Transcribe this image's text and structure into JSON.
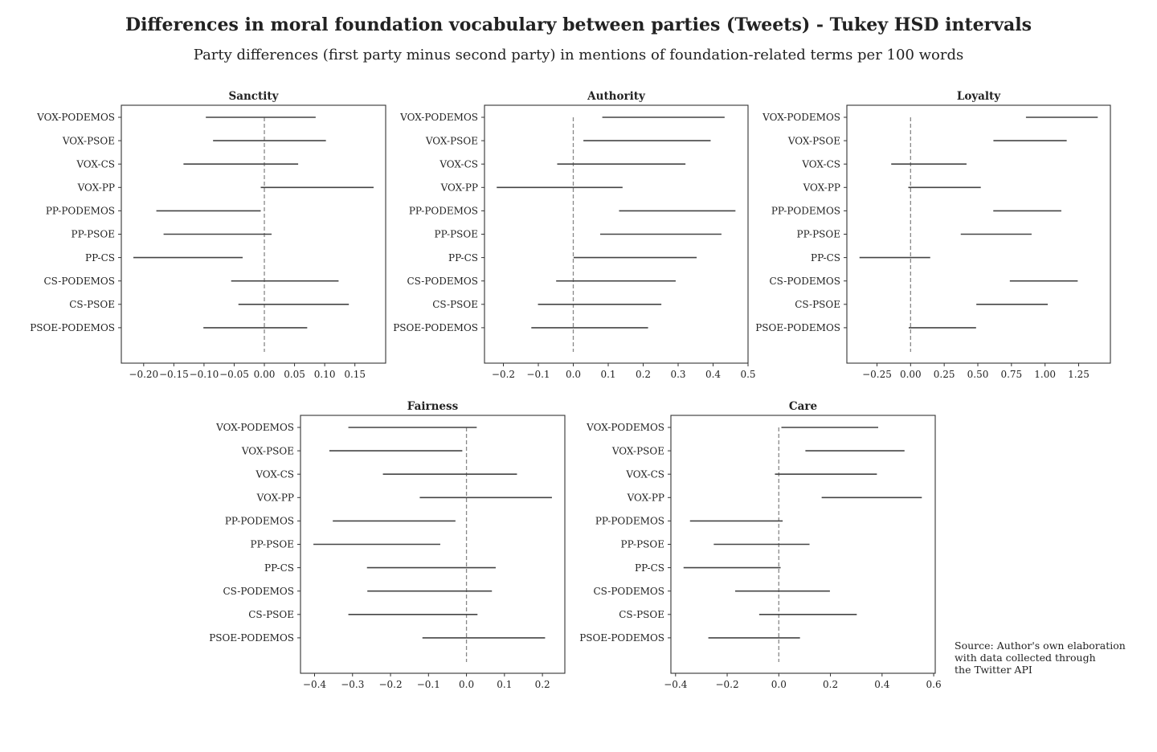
{
  "title": "Differences in moral foundation vocabulary between parties (Tweets) - Tukey HSD intervals",
  "subtitle": "Party differences (first party minus second party) in mentions of foundation-related terms per 100 words",
  "source_note": "Source: Author's own elaboration\nwith data collected through\nthe Twitter API",
  "colors": {
    "interval": "#444444",
    "zero_line": "#888888",
    "axes": "#333333"
  },
  "chart_data": [
    {
      "type": "interval",
      "title": "Sanctity",
      "categories": [
        "VOX-PODEMOS",
        "VOX-PSOE",
        "VOX-CS",
        "VOX-PP",
        "PP-PODEMOS",
        "PP-PSOE",
        "PP-CS",
        "CS-PODEMOS",
        "CS-PSOE",
        "PSOE-PODEMOS"
      ],
      "intervals": [
        [
          -0.097,
          0.085
        ],
        [
          -0.085,
          0.102
        ],
        [
          -0.134,
          0.056
        ],
        [
          -0.006,
          0.181
        ],
        [
          -0.179,
          -0.006
        ],
        [
          -0.167,
          0.012
        ],
        [
          -0.217,
          -0.036
        ],
        [
          -0.055,
          0.123
        ],
        [
          -0.043,
          0.14
        ],
        [
          -0.101,
          0.071
        ]
      ],
      "xlim": [
        -0.237,
        0.201
      ],
      "xticks": [
        -0.2,
        -0.15,
        -0.1,
        -0.05,
        0.0,
        0.05,
        0.1,
        0.15
      ],
      "xtick_labels": [
        "−0.20",
        "−0.15",
        "−0.10",
        "−0.05",
        "0.00",
        "0.05",
        "0.10",
        "0.15"
      ]
    },
    {
      "type": "interval",
      "title": "Authority",
      "categories": [
        "VOX-PODEMOS",
        "VOX-PSOE",
        "VOX-CS",
        "VOX-PP",
        "PP-PODEMOS",
        "PP-PSOE",
        "PP-CS",
        "CS-PODEMOS",
        "CS-PSOE",
        "PSOE-PODEMOS"
      ],
      "intervals": [
        [
          0.083,
          0.433
        ],
        [
          0.029,
          0.393
        ],
        [
          -0.046,
          0.321
        ],
        [
          -0.219,
          0.141
        ],
        [
          0.131,
          0.464
        ],
        [
          0.077,
          0.424
        ],
        [
          0.001,
          0.353
        ],
        [
          -0.049,
          0.293
        ],
        [
          -0.101,
          0.252
        ],
        [
          -0.12,
          0.214
        ]
      ],
      "xlim": [
        -0.254,
        0.5
      ],
      "xticks": [
        -0.2,
        -0.1,
        0.0,
        0.1,
        0.2,
        0.3,
        0.4,
        0.5
      ],
      "xtick_labels": [
        "−0.2",
        "−0.1",
        "0.0",
        "0.1",
        "0.2",
        "0.3",
        "0.4",
        "0.5"
      ]
    },
    {
      "type": "interval",
      "title": "Loyalty",
      "categories": [
        "VOX-PODEMOS",
        "VOX-PSOE",
        "VOX-CS",
        "VOX-PP",
        "PP-PODEMOS",
        "PP-PSOE",
        "PP-CS",
        "CS-PODEMOS",
        "CS-PSOE",
        "PSOE-PODEMOS"
      ],
      "intervals": [
        [
          0.858,
          1.392
        ],
        [
          0.616,
          1.161
        ],
        [
          -0.144,
          0.416
        ],
        [
          -0.017,
          0.522
        ],
        [
          0.615,
          1.121
        ],
        [
          0.373,
          0.9
        ],
        [
          -0.38,
          0.146
        ],
        [
          0.738,
          1.243
        ],
        [
          0.489,
          1.02
        ],
        [
          -0.014,
          0.487
        ]
      ],
      "xlim": [
        -0.474,
        1.486
      ],
      "xticks": [
        -0.25,
        0.0,
        0.25,
        0.5,
        0.75,
        1.0,
        1.25
      ],
      "xtick_labels": [
        "−0.25",
        "0.00",
        "0.25",
        "0.50",
        "0.75",
        "1.00",
        "1.25"
      ]
    },
    {
      "type": "interval",
      "title": "Fairness",
      "categories": [
        "VOX-PODEMOS",
        "VOX-PSOE",
        "VOX-CS",
        "VOX-PP",
        "PP-PODEMOS",
        "PP-PSOE",
        "PP-CS",
        "CS-PODEMOS",
        "CS-PSOE",
        "PSOE-PODEMOS"
      ],
      "intervals": [
        [
          -0.311,
          0.027
        ],
        [
          -0.361,
          -0.011
        ],
        [
          -0.22,
          0.133
        ],
        [
          -0.123,
          0.225
        ],
        [
          -0.352,
          -0.029
        ],
        [
          -0.403,
          -0.069
        ],
        [
          -0.262,
          0.077
        ],
        [
          -0.261,
          0.067
        ],
        [
          -0.311,
          0.029
        ],
        [
          -0.116,
          0.207
        ]
      ],
      "xlim": [
        -0.437,
        0.259
      ],
      "xticks": [
        -0.4,
        -0.3,
        -0.2,
        -0.1,
        0.0,
        0.1,
        0.2
      ],
      "xtick_labels": [
        "−0.4",
        "−0.3",
        "−0.2",
        "−0.1",
        "0.0",
        "0.1",
        "0.2"
      ]
    },
    {
      "type": "interval",
      "title": "Care",
      "categories": [
        "VOX-PODEMOS",
        "VOX-PSOE",
        "VOX-CS",
        "VOX-PP",
        "PP-PODEMOS",
        "PP-PSOE",
        "PP-CS",
        "CS-PODEMOS",
        "CS-PSOE",
        "PSOE-PODEMOS"
      ],
      "intervals": [
        [
          0.01,
          0.385
        ],
        [
          0.103,
          0.487
        ],
        [
          -0.015,
          0.38
        ],
        [
          0.166,
          0.554
        ],
        [
          -0.344,
          0.015
        ],
        [
          -0.252,
          0.119
        ],
        [
          -0.369,
          0.007
        ],
        [
          -0.169,
          0.198
        ],
        [
          -0.076,
          0.302
        ],
        [
          -0.273,
          0.082
        ]
      ],
      "xlim": [
        -0.418,
        0.606
      ],
      "xticks": [
        -0.4,
        -0.2,
        0.0,
        0.2,
        0.4,
        0.6
      ],
      "xtick_labels": [
        "−0.4",
        "−0.2",
        "0.0",
        "0.2",
        "0.4",
        "0.6"
      ]
    }
  ]
}
